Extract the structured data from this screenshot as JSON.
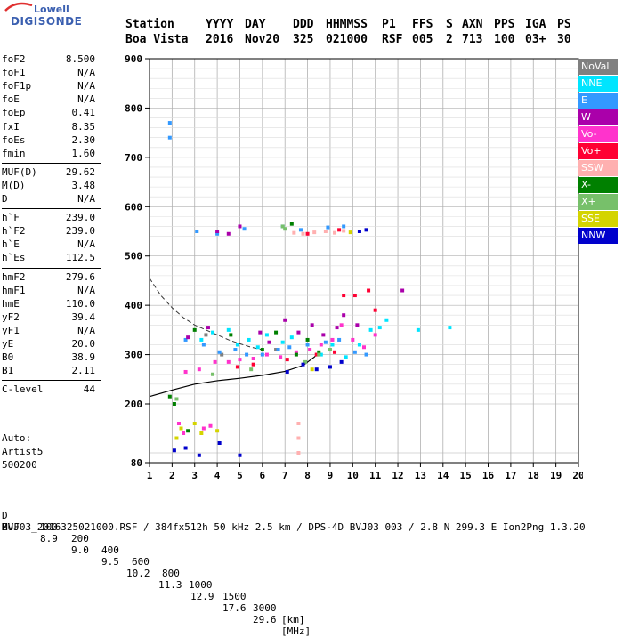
{
  "logo": {
    "top": "Lowell",
    "bottom": "DIGISONDE"
  },
  "header": {
    "row1": [
      "Station",
      "YYYY",
      "DAY",
      "DDD",
      "HHMMSS",
      "P1",
      "FFS",
      "S",
      "AXN",
      "PPS",
      "IGA",
      "PS"
    ],
    "row2": [
      "Boa Vista",
      "2016",
      "Nov20",
      "325",
      "021000",
      "RSF",
      "005",
      "2",
      "713",
      "100",
      "03+",
      "30"
    ]
  },
  "params": [
    {
      "label": "foF2",
      "value": "8.500"
    },
    {
      "label": "foF1",
      "value": "N/A"
    },
    {
      "label": "foF1p",
      "value": "N/A"
    },
    {
      "label": "foE",
      "value": "N/A"
    },
    {
      "label": "foEp",
      "value": "0.41"
    },
    {
      "label": "fxI",
      "value": "8.35"
    },
    {
      "label": "foEs",
      "value": "2.30"
    },
    {
      "label": "fmin",
      "value": "1.60"
    },
    {
      "label": "MUF(D)",
      "value": "29.62"
    },
    {
      "label": "M(D)",
      "value": "3.48"
    },
    {
      "label": "D",
      "value": "N/A"
    },
    {
      "label": "h`F",
      "value": "239.0"
    },
    {
      "label": "h`F2",
      "value": "239.0"
    },
    {
      "label": "h`E",
      "value": "N/A"
    },
    {
      "label": "h`Es",
      "value": "112.5"
    },
    {
      "label": "hmF2",
      "value": "279.6"
    },
    {
      "label": "hmF1",
      "value": "N/A"
    },
    {
      "label": "hmE",
      "value": "110.0"
    },
    {
      "label": "yF2",
      "value": "39.4"
    },
    {
      "label": "yF1",
      "value": "N/A"
    },
    {
      "label": "yE",
      "value": "20.0"
    },
    {
      "label": "B0",
      "value": "38.9"
    },
    {
      "label": "B1",
      "value": "2.11"
    },
    {
      "label": "C-level",
      "value": "44"
    }
  ],
  "autoscaling": {
    "line1": "Auto:",
    "line2": "Artist5",
    "line3": "500200"
  },
  "legend": [
    {
      "label": "NoVal",
      "color": "#808080"
    },
    {
      "label": "NNE",
      "color": "#00e5ff"
    },
    {
      "label": "E",
      "color": "#3399ff"
    },
    {
      "label": "W",
      "color": "#aa00aa"
    },
    {
      "label": "Vo-",
      "color": "#ff33cc"
    },
    {
      "label": "Vo+",
      "color": "#ff0033"
    },
    {
      "label": "SSW",
      "color": "#ffb0b0"
    },
    {
      "label": "X-",
      "color": "#008000"
    },
    {
      "label": "X+",
      "color": "#77c06a"
    },
    {
      "label": "SSE",
      "color": "#d4d400"
    },
    {
      "label": "NNW",
      "color": "#0000cc"
    }
  ],
  "chart_data": {
    "type": "scatter",
    "x_ticks": [
      1,
      2,
      3,
      4,
      5,
      6,
      7,
      8,
      9,
      10,
      11,
      12,
      13,
      14,
      15,
      16,
      17,
      18,
      19,
      20
    ],
    "y_ticks": [
      80,
      200,
      300,
      400,
      500,
      600,
      700,
      800,
      900
    ],
    "xlim": [
      1,
      20
    ],
    "ylim": [
      80,
      900
    ],
    "grid": true,
    "series": [
      {
        "name": "NoVal",
        "points": [
          [
            3.5,
            340
          ],
          [
            4.2,
            300
          ],
          [
            6.6,
            310
          ]
        ]
      },
      {
        "name": "NNE",
        "points": [
          [
            3.3,
            330
          ],
          [
            3.8,
            345
          ],
          [
            4.5,
            350
          ],
          [
            4.9,
            320
          ],
          [
            5.4,
            330
          ],
          [
            5.8,
            315
          ],
          [
            6.2,
            340
          ],
          [
            6.9,
            325
          ],
          [
            7.3,
            335
          ],
          [
            8.6,
            300
          ],
          [
            9.1,
            320
          ],
          [
            9.7,
            295
          ],
          [
            10.3,
            320
          ],
          [
            10.8,
            350
          ],
          [
            11.2,
            355
          ],
          [
            11.5,
            370
          ],
          [
            12.9,
            350
          ],
          [
            14.3,
            355
          ]
        ]
      },
      {
        "name": "E",
        "points": [
          [
            1.9,
            740
          ],
          [
            1.9,
            770
          ],
          [
            2.6,
            330
          ],
          [
            3.4,
            320
          ],
          [
            4.1,
            305
          ],
          [
            4.8,
            310
          ],
          [
            5.3,
            300
          ],
          [
            6.0,
            300
          ],
          [
            6.7,
            310
          ],
          [
            7.2,
            315
          ],
          [
            8.0,
            320
          ],
          [
            8.8,
            325
          ],
          [
            9.4,
            330
          ],
          [
            10.1,
            305
          ],
          [
            10.6,
            300
          ],
          [
            3.1,
            550
          ],
          [
            4.0,
            545
          ],
          [
            5.2,
            555
          ],
          [
            6.9,
            560
          ],
          [
            7.7,
            553
          ],
          [
            8.9,
            558
          ],
          [
            9.6,
            560
          ]
        ]
      },
      {
        "name": "W",
        "points": [
          [
            2.7,
            335
          ],
          [
            3.6,
            355
          ],
          [
            4.0,
            550
          ],
          [
            4.5,
            545
          ],
          [
            5.0,
            560
          ],
          [
            5.9,
            345
          ],
          [
            6.3,
            325
          ],
          [
            7.0,
            370
          ],
          [
            7.6,
            345
          ],
          [
            8.2,
            360
          ],
          [
            8.7,
            340
          ],
          [
            9.3,
            355
          ],
          [
            9.6,
            380
          ],
          [
            10.2,
            360
          ],
          [
            12.2,
            430
          ]
        ]
      },
      {
        "name": "Vo-",
        "points": [
          [
            2.6,
            265
          ],
          [
            3.2,
            270
          ],
          [
            3.9,
            285
          ],
          [
            4.5,
            285
          ],
          [
            5.0,
            290
          ],
          [
            5.6,
            292
          ],
          [
            6.2,
            300
          ],
          [
            6.8,
            295
          ],
          [
            7.5,
            305
          ],
          [
            8.1,
            310
          ],
          [
            8.6,
            320
          ],
          [
            9.1,
            330
          ],
          [
            9.5,
            360
          ],
          [
            10.0,
            330
          ],
          [
            10.5,
            315
          ],
          [
            11.0,
            340
          ],
          [
            2.3,
            160
          ],
          [
            2.5,
            140
          ],
          [
            3.4,
            150
          ],
          [
            3.7,
            155
          ]
        ]
      },
      {
        "name": "Vo+",
        "points": [
          [
            4.9,
            275
          ],
          [
            5.6,
            280
          ],
          [
            7.1,
            290
          ],
          [
            8.4,
            300
          ],
          [
            9.2,
            305
          ],
          [
            9.6,
            420
          ],
          [
            10.1,
            420
          ],
          [
            10.7,
            430
          ],
          [
            11.0,
            390
          ],
          [
            9.4,
            553
          ],
          [
            8.0,
            545
          ]
        ]
      },
      {
        "name": "SSW",
        "points": [
          [
            7.4,
            547
          ],
          [
            7.8,
            545
          ],
          [
            8.3,
            548
          ],
          [
            8.8,
            550
          ],
          [
            9.2,
            547
          ],
          [
            9.6,
            551
          ],
          [
            7.6,
            160
          ],
          [
            7.6,
            130
          ],
          [
            7.6,
            100
          ]
        ]
      },
      {
        "name": "X-",
        "points": [
          [
            1.9,
            215
          ],
          [
            3.0,
            350
          ],
          [
            4.6,
            340
          ],
          [
            6.0,
            310
          ],
          [
            6.6,
            345
          ],
          [
            7.3,
            565
          ],
          [
            7.5,
            300
          ],
          [
            8.0,
            330
          ],
          [
            8.5,
            305
          ],
          [
            2.1,
            200
          ],
          [
            2.7,
            145
          ]
        ]
      },
      {
        "name": "X+",
        "points": [
          [
            2.2,
            210
          ],
          [
            3.8,
            260
          ],
          [
            5.5,
            270
          ],
          [
            6.9,
            560
          ],
          [
            7.0,
            555
          ],
          [
            7.9,
            285
          ],
          [
            8.5,
            300
          ],
          [
            9.0,
            310
          ]
        ]
      },
      {
        "name": "SSE",
        "points": [
          [
            2.2,
            130
          ],
          [
            2.4,
            150
          ],
          [
            3.0,
            160
          ],
          [
            3.3,
            140
          ],
          [
            4.0,
            145
          ],
          [
            8.2,
            270
          ],
          [
            9.9,
            548
          ]
        ]
      },
      {
        "name": "NNW",
        "points": [
          [
            2.1,
            105
          ],
          [
            2.6,
            110
          ],
          [
            3.2,
            95
          ],
          [
            4.1,
            120
          ],
          [
            5.0,
            95
          ],
          [
            7.1,
            265
          ],
          [
            7.8,
            280
          ],
          [
            8.4,
            270
          ],
          [
            9.0,
            275
          ],
          [
            9.5,
            285
          ],
          [
            10.3,
            550
          ],
          [
            10.6,
            553
          ]
        ]
      }
    ]
  },
  "footer": {
    "row1_label": "D",
    "row1_values": [
      "100",
      "200",
      "400",
      "600",
      "800",
      "1000",
      "1500",
      "3000",
      "[km]"
    ],
    "row2_label": "MUF",
    "row2_values": [
      "8.9",
      "9.0",
      "9.5",
      "10.2",
      "11.3",
      "12.9",
      "17.6",
      "29.6",
      "[MHz]"
    ],
    "info": "BVJ03_2016325021000.RSF / 384fx512h 50 kHz 2.5 km / DPS-4D BVJ03 003 / 2.8 N 299.3 E Ion2Png 1.3.20"
  }
}
